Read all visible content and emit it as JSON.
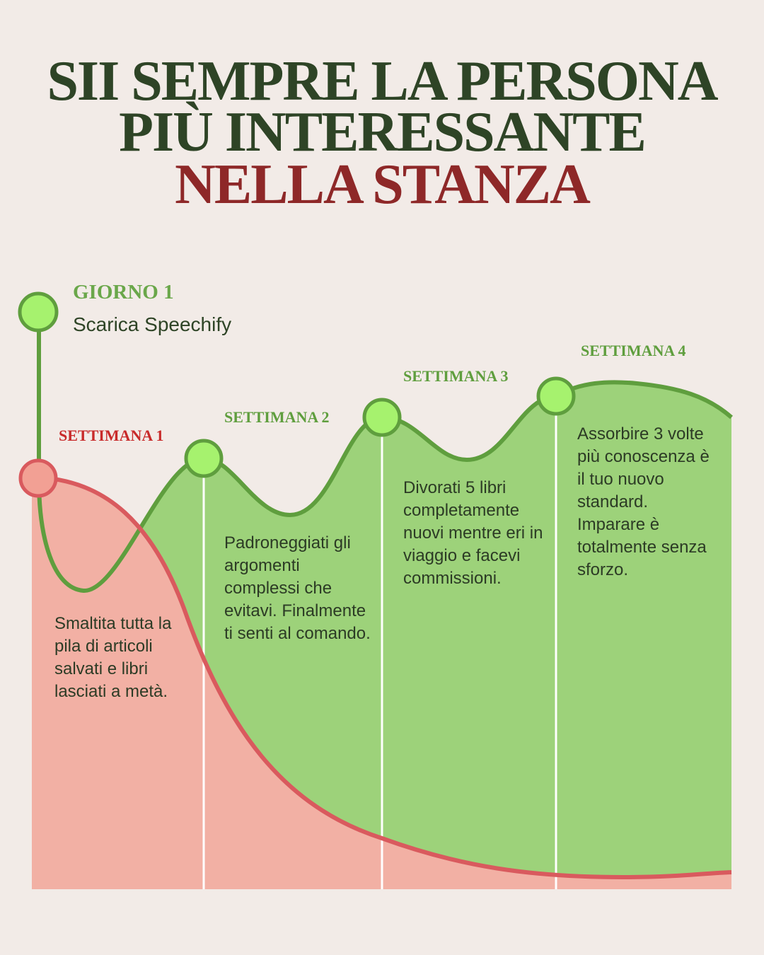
{
  "title": {
    "line1": "SII SEMPRE LA PERSONA",
    "line2": "PIÙ INTERESSANTE",
    "line3": "NELLA STANZA"
  },
  "day1": {
    "label": "GIORNO 1",
    "action": "Scarica Speechify"
  },
  "weeks": [
    {
      "label": "SETTIMANA 1",
      "text": "Smaltita tutta la pila di articoli salvati e libri lasciati a metà."
    },
    {
      "label": "SETTIMANA 2",
      "text": "Padroneggiati gli argomenti complessi che evitavi. Finalmente ti senti al comando."
    },
    {
      "label": "SETTIMANA 3",
      "text": "Divorati 5 libri completamente nuovi mentre eri in viaggio e facevi commissioni."
    },
    {
      "label": "SETTIMANA 4",
      "text": "Assorbire 3 volte più conoscenza è il tuo nuovo standard. Imparare è totalmente senza sforzo."
    }
  ],
  "colors": {
    "background": "#f2ebe7",
    "green_fill": "#9dd27a",
    "green_line": "#5f9e3e",
    "red_fill": "#f2b0a4",
    "red_line": "#d95a5e",
    "marker_green": "#a6f26e",
    "title_green": "#2e4426",
    "title_red": "#8e2828"
  }
}
